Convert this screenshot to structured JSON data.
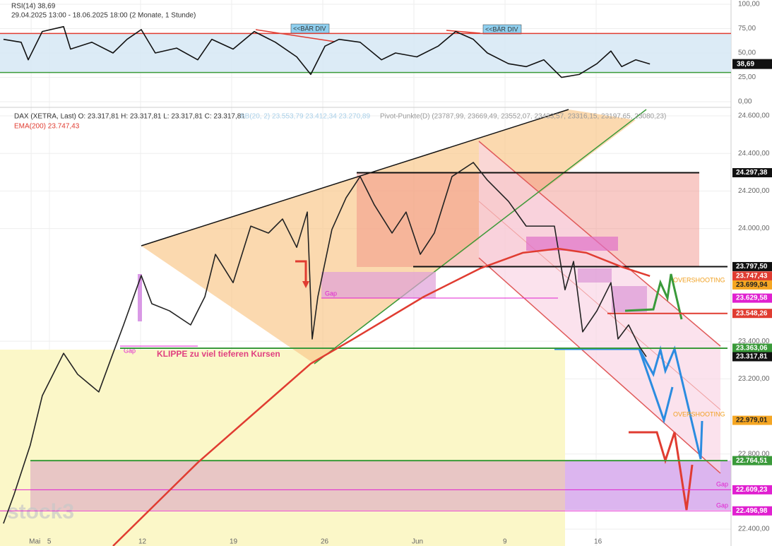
{
  "chart_data": [
    {
      "type": "line",
      "title": "RSI(14) 38,69",
      "subtitle": "29.04.2025 13:00 - 18.06.2025 18:00  (2 Monate, 1 Stunde)",
      "ylim": [
        -4.3,
        104.3
      ],
      "xlim": [
        0.29,
        40.4
      ],
      "yticks": [
        {
          "value": 100,
          "label": "100,00"
        },
        {
          "value": 75,
          "label": "75,00"
        },
        {
          "value": 50,
          "label": "50,00"
        },
        {
          "value": 25,
          "label": "25,00"
        },
        {
          "value": 0,
          "label": "0,00"
        }
      ],
      "levels": [
        {
          "value": 70,
          "color": "#e03c31"
        },
        {
          "value": 30,
          "color": "#3a9a3a"
        }
      ],
      "series": [
        {
          "name": "RSI(14)",
          "color": "#111111",
          "x": [
            0.48,
            1.45,
            1.84,
            2.61,
            3.78,
            4.16,
            5.33,
            6.49,
            7.26,
            8.04,
            8.81,
            9.98,
            11.14,
            11.91,
            13.08,
            14.24,
            15.4,
            16.57,
            17.34,
            18.12,
            18.89,
            20.05,
            21.22,
            21.99,
            23.16,
            24.33,
            25.29,
            26.26,
            27.03,
            28.19,
            29.16,
            30.13,
            31.1,
            32.07,
            33.04,
            33.81,
            34.4,
            35.17,
            35.95
          ],
          "values": [
            64,
            61,
            43,
            72,
            77,
            54,
            61,
            50,
            64,
            74,
            50,
            55,
            43,
            64,
            54,
            72,
            61,
            46,
            28,
            57,
            64,
            61,
            43,
            50,
            46,
            57,
            72,
            64,
            50,
            39,
            36,
            43,
            25,
            28,
            39,
            52,
            36,
            43,
            38.69
          ]
        }
      ],
      "last_label": {
        "value": 38.69,
        "label": "38,69"
      },
      "annotations": [
        "<<BÄR DIV",
        "<<BÄR DIV"
      ]
    },
    {
      "type": "line",
      "title": "DAX (XETRA, Last)  O: 23.317,81  H: 23.317,81  L: 23.317,81  C: 23.317,81",
      "indicators": [
        "BB(20, 2)  23.553,79  23.412,34  23.270,89",
        "Pivot-Punkte(D)  (23787,99, 23669,49, 23552,07, 23433,57, 23316,15, 23197,65, 23080,23)"
      ],
      "ylim": [
        22310,
        24634
      ],
      "xlim": [
        0.29,
        40.4
      ],
      "yticks": [
        {
          "value": 24600,
          "label": "24.600,00"
        },
        {
          "value": 24400,
          "label": "24.400,00"
        },
        {
          "value": 24200,
          "label": "24.200,00"
        },
        {
          "value": 24000,
          "label": "24.000,00"
        },
        {
          "value": 23400,
          "label": "23.400,00"
        },
        {
          "value": 23200,
          "label": "23.200,00"
        },
        {
          "value": 22800,
          "label": "22.800,00"
        },
        {
          "value": 22400,
          "label": "22.400,00"
        }
      ],
      "xticks": [
        {
          "value": 2,
          "label": "Mai"
        },
        {
          "value": 3,
          "label": "5"
        },
        {
          "value": 8,
          "label": "12"
        },
        {
          "value": 13,
          "label": "19"
        },
        {
          "value": 18,
          "label": "26"
        },
        {
          "value": 23,
          "label": "Jun"
        },
        {
          "value": 28,
          "label": "9"
        },
        {
          "value": 33,
          "label": "16"
        }
      ],
      "series": [
        {
          "name": "DAX (XETRA, Last)",
          "color": "#222222",
          "x": [
            0.48,
            1.06,
            1.95,
            2.61,
            3.78,
            4.55,
            5.71,
            6.49,
            7.07,
            8.04,
            8.62,
            9.59,
            10.75,
            11.53,
            12.11,
            13.08,
            14.05,
            15.02,
            15.79,
            16.57,
            17.15,
            17.42,
            17.73,
            18.5,
            19.28,
            20.05,
            20.83,
            21.8,
            22.57,
            23.35,
            24.12,
            25.09,
            26.26,
            27.03,
            28.19,
            29.16,
            30.71,
            31.29,
            31.76,
            32.26,
            33.04,
            33.81,
            34.2,
            34.78,
            35.36,
            35.75
          ],
          "values": [
            22430,
            22584,
            22847,
            23110,
            23336,
            23224,
            23130,
            23336,
            23487,
            23750,
            23600,
            23562,
            23487,
            23637,
            23863,
            23712,
            24013,
            23976,
            24051,
            23900,
            24088,
            23412,
            23637,
            23995,
            24164,
            24277,
            24126,
            23976,
            24088,
            23863,
            23976,
            24277,
            24352,
            24258,
            24145,
            24013,
            24013,
            23674,
            23825,
            23450,
            23562,
            23712,
            23412,
            23487,
            23374,
            23317.81
          ]
        },
        {
          "name": "EMA(200)  23.747,43",
          "color": "#e03c31",
          "x": [
            6.49,
            11.14,
            17.34,
            19.67,
            23.54,
            26.64,
            28.97,
            30.91,
            32.46,
            34.4,
            35.95
          ],
          "values": [
            22310,
            22754,
            23281,
            23412,
            23637,
            23788,
            23871,
            23893,
            23871,
            23796,
            23747.43
          ]
        }
      ],
      "price_levels": [
        {
          "value": 24297.38,
          "label": "24.297,38",
          "color": "#111111"
        },
        {
          "value": 23797.5,
          "label": "23.797,50",
          "color": "#111111"
        },
        {
          "value": 23747.43,
          "label": "23.747,43",
          "color": "#e03c31"
        },
        {
          "value": 23699.94,
          "label": "23.699,94",
          "color": "#f5a623",
          "text_color": "#222222"
        },
        {
          "value": 23629.58,
          "label": "23.629,58",
          "color": "#e020d0"
        },
        {
          "value": 23548.26,
          "label": "23.548,26",
          "color": "#e03c31"
        },
        {
          "value": 23363.06,
          "label": "23.363,06",
          "color": "#3a9a3a"
        },
        {
          "value": 23317.81,
          "label": "23.317,81",
          "color": "#111111"
        },
        {
          "value": 22979.01,
          "label": "22.979,01",
          "color": "#f5a623",
          "text_color": "#222222"
        },
        {
          "value": 22764.51,
          "label": "22.764,51",
          "color": "#3a9a3a"
        },
        {
          "value": 22609.23,
          "label": "22.609,23",
          "color": "#e020d0"
        },
        {
          "value": 22496.98,
          "label": "22.496,98",
          "color": "#e020d0"
        }
      ],
      "annotations": {
        "gaps": [
          "Gap",
          "Gap",
          "Gap",
          "Gap"
        ],
        "klippe": "KLIPPE zu viel tieferen Kursen",
        "overshooting": [
          "OVERSHOOTING",
          "OVERSHOOTING"
        ],
        "watermark": "stock3"
      }
    }
  ]
}
